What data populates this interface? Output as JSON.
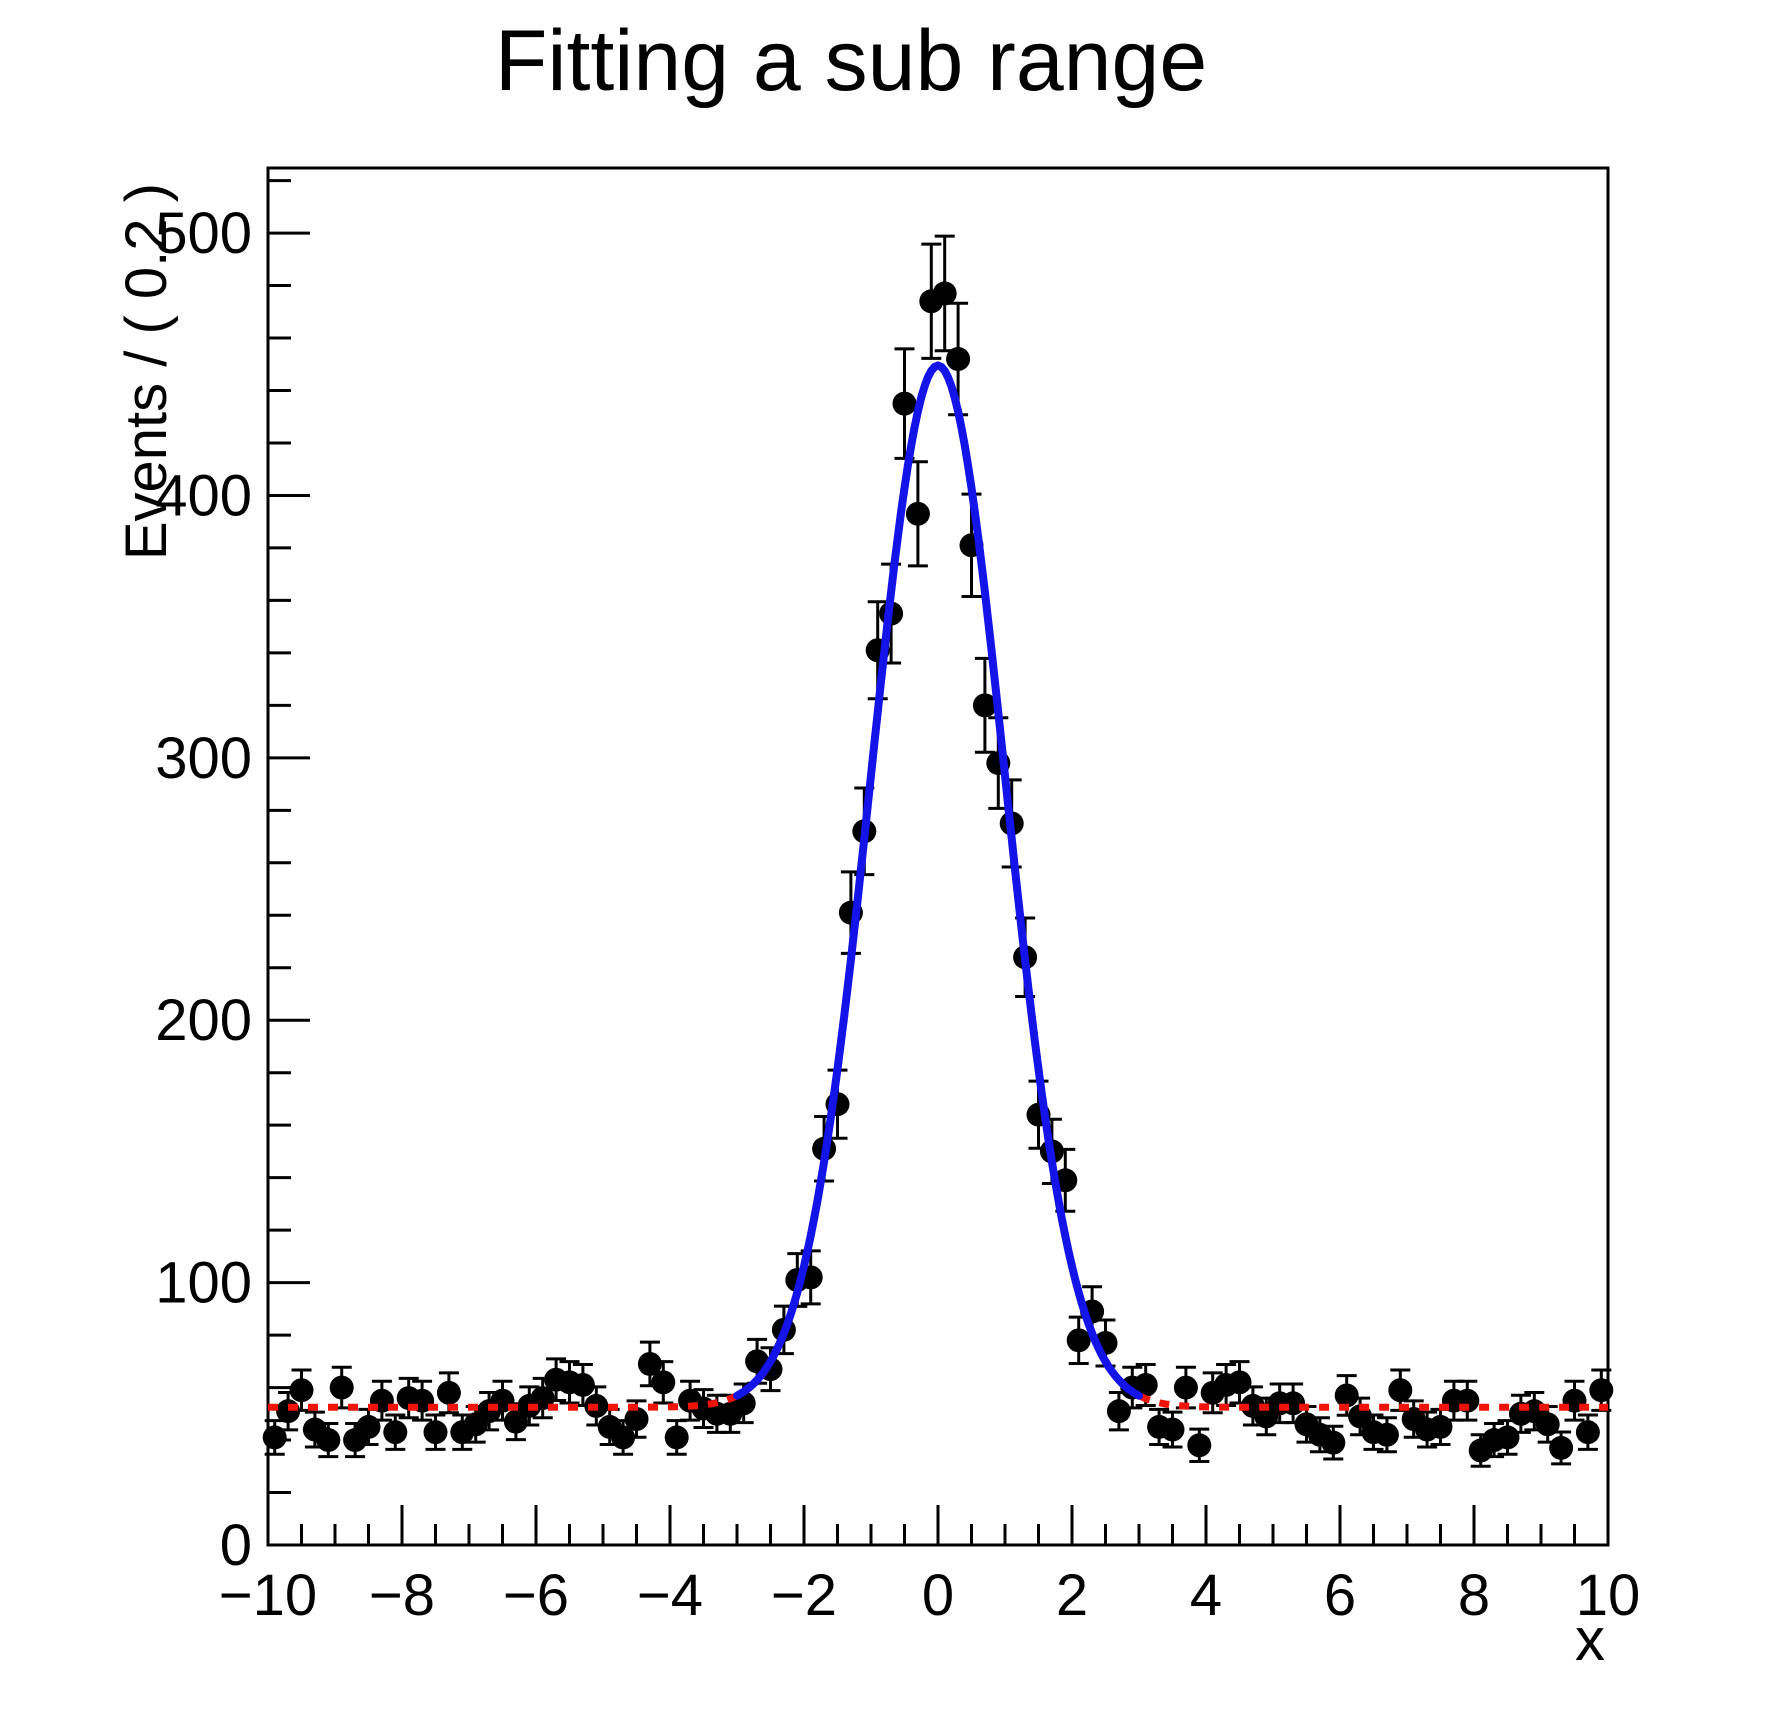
{
  "title": "Fitting a sub range",
  "chart_data": {
    "type": "scatter",
    "title": "Fitting a sub range",
    "xlabel": "x",
    "ylabel": "Events / ( 0.2 )",
    "xlim": [
      -10,
      10
    ],
    "ylim": [
      0,
      524.8
    ],
    "grid": false,
    "legend": "none",
    "x_major_ticks": [
      -10,
      -8,
      -6,
      -4,
      -2,
      0,
      2,
      4,
      6,
      8,
      10
    ],
    "x_tick_labels": [
      "−10",
      "−8",
      "−6",
      "−4",
      "−2",
      "0",
      "2",
      "4",
      "6",
      "8",
      "10"
    ],
    "x_minor_step": 0.5,
    "y_major_ticks": [
      0,
      100,
      200,
      300,
      400,
      500
    ],
    "y_tick_labels": [
      "0",
      "100",
      "200",
      "300",
      "400",
      "500"
    ],
    "y_minor_step": 20,
    "bin_width": 0.2,
    "marker": {
      "shape": "circle",
      "color": "#000000",
      "radius": 12
    },
    "error_model": "sqrt(N)",
    "points": {
      "x": [
        -9.9,
        -9.7,
        -9.5,
        -9.3,
        -9.1,
        -8.9,
        -8.7,
        -8.5,
        -8.3,
        -8.1,
        -7.9,
        -7.7,
        -7.5,
        -7.3,
        -7.1,
        -6.9,
        -6.7,
        -6.5,
        -6.3,
        -6.1,
        -5.9,
        -5.7,
        -5.5,
        -5.3,
        -5.1,
        -4.9,
        -4.7,
        -4.5,
        -4.3,
        -4.1,
        -3.9,
        -3.7,
        -3.5,
        -3.3,
        -3.1,
        -2.9,
        -2.7,
        -2.5,
        -2.3,
        -2.1,
        -1.9,
        -1.7,
        -1.5,
        -1.3,
        -1.1,
        -0.9,
        -0.7,
        -0.5,
        -0.3,
        -0.1,
        0.1,
        0.3,
        0.5,
        0.7,
        0.9,
        1.1,
        1.3,
        1.5,
        1.7,
        1.9,
        2.1,
        2.3,
        2.5,
        2.7,
        2.9,
        3.1,
        3.3,
        3.5,
        3.7,
        3.9,
        4.1,
        4.3,
        4.5,
        4.7,
        4.9,
        5.1,
        5.3,
        5.5,
        5.7,
        5.9,
        6.1,
        6.3,
        6.5,
        6.7,
        6.9,
        7.1,
        7.3,
        7.5,
        7.7,
        7.9,
        8.1,
        8.3,
        8.5,
        8.7,
        8.9,
        9.1,
        9.3,
        9.5,
        9.7,
        9.9
      ],
      "y": [
        41,
        51,
        59,
        44,
        40,
        60,
        40,
        45,
        55,
        43,
        56,
        55,
        43,
        58,
        43,
        46,
        51,
        55,
        47,
        53,
        56,
        63,
        62,
        61,
        53,
        45,
        41,
        48,
        69,
        62,
        41,
        55,
        52,
        50,
        50,
        54,
        70,
        67,
        82,
        101,
        102,
        151,
        168,
        241,
        272,
        341,
        355,
        435,
        393,
        474,
        477,
        452,
        381,
        320,
        298,
        275,
        224,
        164,
        150,
        139,
        78,
        89,
        77,
        51,
        60,
        61,
        45,
        44,
        60,
        38,
        58,
        61,
        62,
        53,
        49,
        54,
        54,
        46,
        42,
        39,
        57,
        49,
        43,
        42,
        59,
        48,
        44,
        45,
        55,
        55,
        36,
        40,
        41,
        50,
        51,
        46,
        37,
        55,
        43,
        59
      ]
    },
    "fit": {
      "shape": "gaussian_plus_flat_background",
      "mean": 0.0,
      "sigma": 1.0,
      "amplitude": 397.0,
      "background": 52.5
    },
    "series": [
      {
        "name": "full-range-fit-curve",
        "style": "dashed",
        "color": "#f01408",
        "range": [
          -10,
          10
        ],
        "width": 7,
        "dash": "10 10"
      },
      {
        "name": "sub-range-fit-curve",
        "style": "solid",
        "color": "#1414e8",
        "range": [
          -3,
          3
        ],
        "width": 8,
        "dash": ""
      }
    ],
    "frame_color": "#000000",
    "background_color": "#ffffff"
  }
}
